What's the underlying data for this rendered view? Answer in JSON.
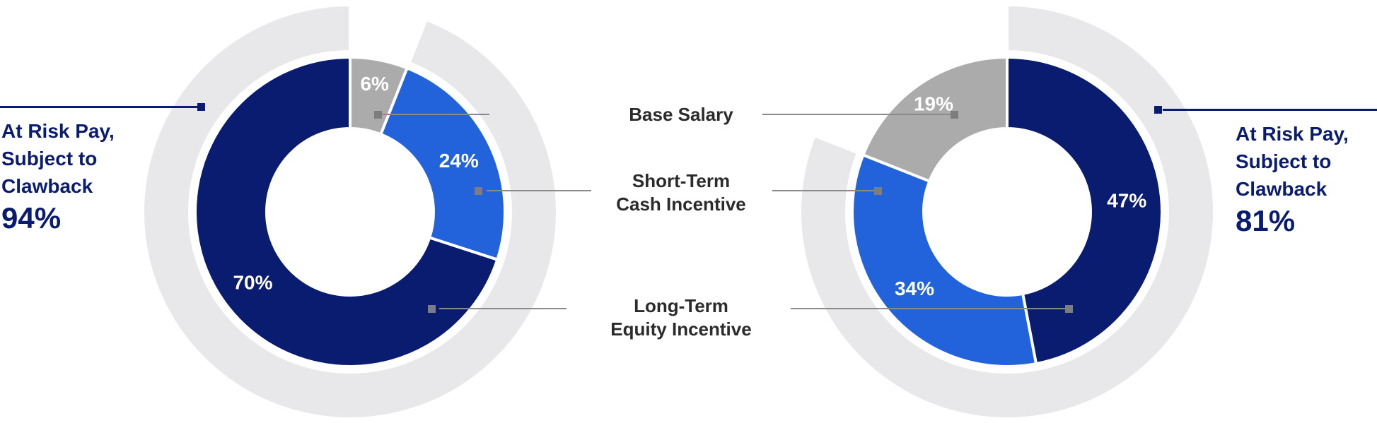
{
  "colors": {
    "navy": "#0A1C70",
    "blue": "#2263DC",
    "gray": "#ABABAB",
    "outer_ring": "#E8E8EA",
    "connector_gray": "#8A8A8A",
    "legend_text": "#2B2B2B",
    "percent_text": "#FFFFFF"
  },
  "legend": {
    "items": [
      {
        "key": "base_salary",
        "label_lines": [
          "Base Salary"
        ]
      },
      {
        "key": "short_term_cash_incentive",
        "label_lines": [
          "Short-Term",
          "Cash Incentive"
        ]
      },
      {
        "key": "long_term_equity_incentive",
        "label_lines": [
          "Long-Term",
          "Equity Incentive"
        ]
      }
    ]
  },
  "annotations": {
    "left": {
      "lines": [
        "At Risk Pay,",
        "Subject to",
        "Clawback"
      ],
      "value": "94%"
    },
    "right": {
      "lines": [
        "At Risk Pay,",
        "Subject to",
        "Clawback"
      ],
      "value": "81%"
    }
  },
  "chart_data": [
    {
      "type": "pie",
      "subtype": "donut",
      "position": "left",
      "direction": "clockwise_from_top",
      "slices": [
        {
          "key": "base_salary",
          "name": "Base Salary",
          "value": 6,
          "label": "6%",
          "color": "#ABABAB"
        },
        {
          "key": "short_term_cash_incentive",
          "name": "Short-Term Cash Incentive",
          "value": 24,
          "label": "24%",
          "color": "#2263DC"
        },
        {
          "key": "long_term_equity_incentive",
          "name": "Long-Term Equity Incentive",
          "value": 70,
          "label": "70%",
          "color": "#0A1C70"
        }
      ],
      "outer_arc": {
        "name": "At Risk Pay, Subject to Clawback",
        "value": 94,
        "color": "#E8E8EA",
        "gap_over": "base_salary"
      }
    },
    {
      "type": "pie",
      "subtype": "donut",
      "position": "right",
      "direction": "clockwise_from_top",
      "slices": [
        {
          "key": "long_term_equity_incentive",
          "name": "Long-Term Equity Incentive",
          "value": 47,
          "label": "47%",
          "color": "#0A1C70"
        },
        {
          "key": "short_term_cash_incentive",
          "name": "Short-Term Cash Incentive",
          "value": 34,
          "label": "34%",
          "color": "#2263DC"
        },
        {
          "key": "base_salary",
          "name": "Base Salary",
          "value": 19,
          "label": "19%",
          "color": "#ABABAB"
        }
      ],
      "outer_arc": {
        "name": "At Risk Pay, Subject to Clawback",
        "value": 81,
        "color": "#E8E8EA",
        "gap_over": "base_salary"
      }
    }
  ]
}
